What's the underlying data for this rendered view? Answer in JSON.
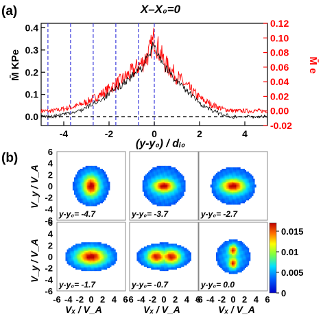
{
  "panels": {
    "a": {
      "label": "(a)"
    },
    "b": {
      "label": "(b)"
    }
  },
  "chart_data": [
    {
      "type": "line",
      "title": "X–X₀=0",
      "xlabel": "(y-y₀) / dᵢ₀",
      "ylabel_left": "M̄ KPe",
      "ylabel_right": "M̄ e",
      "xlim": [
        -5,
        5
      ],
      "ylim_left": [
        -0.04,
        0.42
      ],
      "ylim_right": [
        -0.02,
        0.12
      ],
      "x_ticks": [
        -4,
        -2,
        0,
        2,
        4
      ],
      "y_ticks_left": [
        "0.0",
        "0.1",
        "0.2",
        "0.3",
        "0.4"
      ],
      "y_ticks_right": [
        "-0.02",
        "0.00",
        "0.02",
        "0.04",
        "0.06",
        "0.08",
        "0.10",
        "0.12"
      ],
      "colors": {
        "left": "#000000",
        "right": "#ff0000",
        "markers": "#3b3bdb",
        "zero": "#000000"
      },
      "marker_positions": [
        -4.7,
        -3.7,
        -2.7,
        -1.7,
        -0.7,
        0.0
      ],
      "series": [
        {
          "axis": "left",
          "x": [
            -5,
            -4.5,
            -4,
            -3.5,
            -3,
            -2.5,
            -2,
            -1.5,
            -1,
            -0.5,
            -0.25,
            0,
            0.25,
            0.5,
            1,
            1.5,
            2,
            2.5,
            3,
            3.5,
            4,
            4.5,
            5
          ],
          "values": [
            0.0,
            0.0,
            0.01,
            0.02,
            0.04,
            0.07,
            0.1,
            0.14,
            0.18,
            0.23,
            0.27,
            0.33,
            0.27,
            0.22,
            0.16,
            0.11,
            0.06,
            0.03,
            0.01,
            0.0,
            0.0,
            0.0,
            0.0
          ]
        },
        {
          "axis": "right",
          "x": [
            -5,
            -4.5,
            -4,
            -3.5,
            -3,
            -2.5,
            -2,
            -1.5,
            -1,
            -0.5,
            -0.25,
            0,
            0.25,
            0.5,
            1,
            1.5,
            2,
            2.5,
            3,
            3.5,
            4,
            4.5,
            5
          ],
          "values": [
            0.0,
            0.0,
            0.003,
            0.006,
            0.012,
            0.02,
            0.03,
            0.041,
            0.053,
            0.067,
            0.078,
            0.1,
            0.079,
            0.064,
            0.047,
            0.032,
            0.018,
            0.009,
            0.003,
            0.0,
            0.0,
            0.0,
            0.0
          ]
        }
      ]
    },
    {
      "type": "heatmap",
      "xlabel": "Vₓ / V_A",
      "ylabel": "V_y / V_A",
      "xlim": [
        -6,
        6
      ],
      "ylim": [
        -6,
        6
      ],
      "x_ticks": [
        "-6",
        "-4",
        "-2",
        "0",
        "2",
        "4",
        "6"
      ],
      "y_ticks": [
        "6",
        "4",
        "2",
        "0",
        "-2",
        "-4",
        "-6"
      ],
      "colorbar": {
        "ticks": [
          "0.015",
          "0.01",
          "0.005",
          "0"
        ],
        "range": [
          0,
          0.017
        ]
      },
      "panels": [
        {
          "label": "y-y₀= -4.7",
          "rx": 3.2,
          "ry": 3.6,
          "core": 1.3,
          "elong": "y"
        },
        {
          "label": "y-y₀= -3.7",
          "rx": 3.8,
          "ry": 3.6,
          "core": 1.8,
          "elong": "x"
        },
        {
          "label": "y-y₀= -2.7",
          "rx": 3.9,
          "ry": 3.3,
          "core": 2.0,
          "elong": "x"
        },
        {
          "label": "y-y₀= -1.7",
          "rx": 4.6,
          "ry": 2.6,
          "core": 2.4,
          "elong": "x"
        },
        {
          "label": "y-y₀= -0.7",
          "rx": 4.8,
          "ry": 2.4,
          "core": 2.8,
          "elong": "x2"
        },
        {
          "label": "y-y₀= 0.0",
          "rx": 3.0,
          "ry": 3.0,
          "core": 0.9,
          "elong": "y2"
        }
      ]
    }
  ]
}
